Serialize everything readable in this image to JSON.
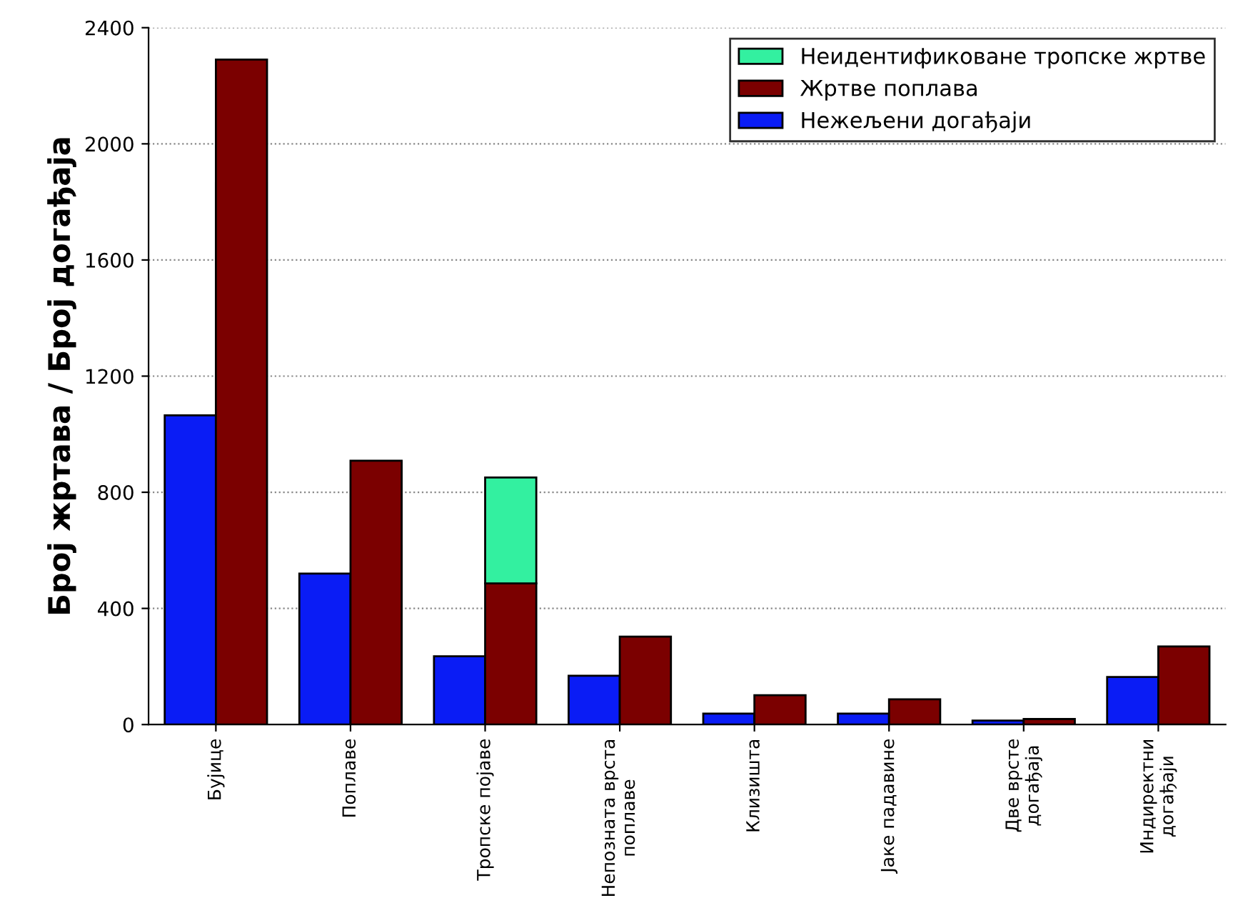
{
  "chart_data": {
    "type": "bar",
    "ylabel": "Број жртава / Број догађаја",
    "categories": [
      "Бујице",
      "Поплаве",
      "Тропске појаве",
      "Непозната врста поплаве",
      "Клизишта",
      "Јаке падавине",
      "Две врсте догађаја",
      "Индиректни догађаји"
    ],
    "series": [
      {
        "name": "Нежељени догађаји",
        "color": "#0a1cf5",
        "values": [
          1065,
          520,
          235,
          168,
          38,
          38,
          14,
          164
        ]
      },
      {
        "name": "Жртве поплава",
        "color": "#7b0000",
        "values": [
          2290,
          909,
          486,
          303,
          101,
          87,
          19,
          269
        ]
      },
      {
        "name": "Неидентификоване тропске жртве",
        "color": "#33f0a0",
        "values": [
          null,
          null,
          365,
          null,
          null,
          null,
          null,
          null
        ],
        "base": [
          null,
          null,
          486,
          null,
          null,
          null,
          null,
          null
        ]
      }
    ],
    "ylim": [
      0,
      2400
    ],
    "yticks": [
      0,
      400,
      800,
      1200,
      1600,
      2000,
      2400
    ],
    "grid": "y",
    "legend": "top right"
  }
}
